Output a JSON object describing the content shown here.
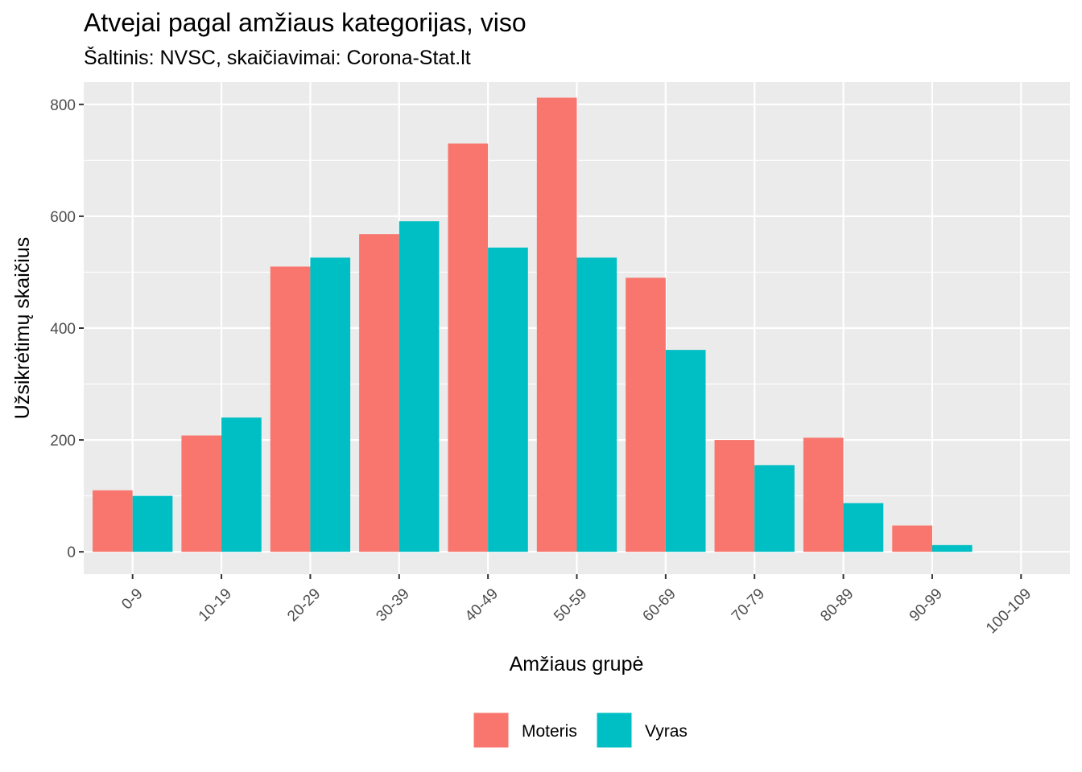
{
  "chart_data": {
    "type": "bar",
    "title": "Atvejai pagal amžiaus kategorijas, viso",
    "subtitle": "Šaltinis: NVSC, skaičiavimai: Corona-Stat.lt",
    "xlabel": "Amžiaus grupė",
    "ylabel": "Užsikrėtimų skaičius",
    "categories": [
      "0-9",
      "10-19",
      "20-29",
      "30-39",
      "40-49",
      "50-59",
      "60-69",
      "70-79",
      "80-89",
      "90-99",
      "100-109"
    ],
    "series": [
      {
        "name": "Moteris",
        "color": "#F8766D",
        "values": [
          110,
          208,
          510,
          568,
          730,
          812,
          490,
          200,
          204,
          47,
          0
        ]
      },
      {
        "name": "Vyras",
        "color": "#00BFC4",
        "values": [
          100,
          240,
          526,
          591,
          544,
          526,
          361,
          155,
          87,
          12,
          0
        ]
      }
    ],
    "ylim": [
      -40,
      840
    ],
    "yticks": [
      0,
      200,
      400,
      600,
      800
    ],
    "grid": true,
    "legend_position": "bottom",
    "panel_background": "#EBEBEB"
  }
}
